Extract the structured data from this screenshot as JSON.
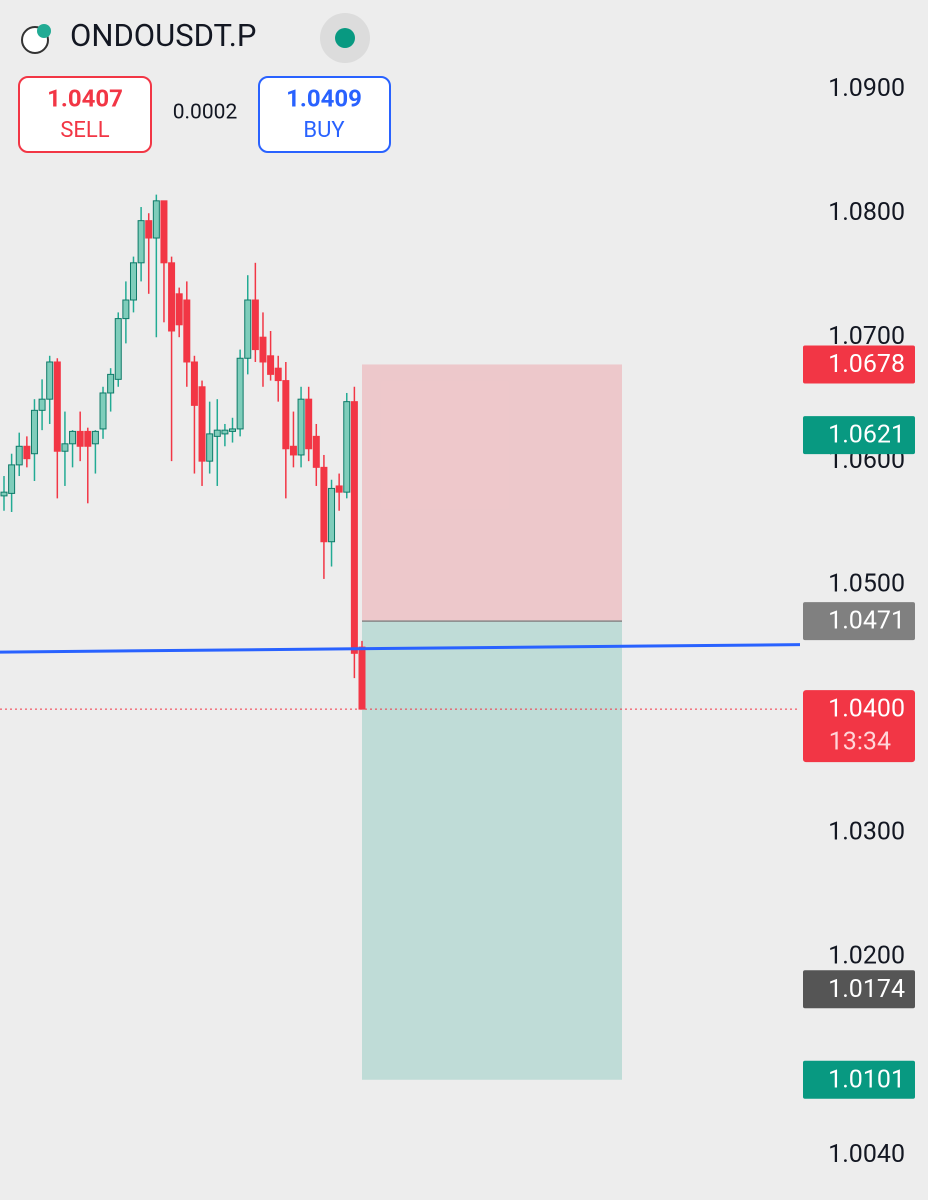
{
  "chart_data": {
    "type": "candlestick",
    "symbol": "ONDOUSDT.P",
    "sell": {
      "price": 1.0407,
      "label": "SELL"
    },
    "spread": 0.0002,
    "buy": {
      "price": 1.0409,
      "label": "BUY"
    },
    "ylim": [
      1.0004,
      1.0972
    ],
    "yticks": [
      {
        "value": 1.09,
        "label": "1.0900"
      },
      {
        "value": 1.08,
        "label": "1.0800"
      },
      {
        "value": 1.07,
        "label": "1.0700"
      },
      {
        "value": 1.06,
        "label": "1.0600"
      },
      {
        "value": 1.05,
        "label": "1.0500"
      },
      {
        "value": 1.03,
        "label": "1.0300"
      },
      {
        "value": 1.02,
        "label": "1.0200"
      },
      {
        "value": 1.004,
        "label": "1.0040"
      }
    ],
    "up_color": "#22ab94",
    "down_color": "#f23645",
    "open": [
      1.0572,
      1.0574,
      1.0597,
      1.0612,
      1.0606,
      1.0641,
      1.065,
      1.068,
      1.0608,
      1.0614,
      1.0624,
      1.0624,
      1.0614,
      1.0626,
      1.0655,
      1.0666,
      1.0715,
      1.073,
      1.076,
      1.0794,
      1.078,
      1.081,
      1.076,
      1.0735,
      1.073,
      1.068,
      1.066,
      1.06,
      1.062,
      1.0622,
      1.0624,
      1.0626,
      1.0683,
      1.073,
      1.07,
      1.0685,
      1.0675,
      1.0665,
      1.0612,
      1.0605,
      1.065,
      1.062,
      1.0595,
      1.0535,
      1.058,
      1.0575,
      1.0648,
      1.045
    ],
    "high": [
      1.0588,
      1.0606,
      1.0623,
      1.062,
      1.065,
      1.0666,
      1.0685,
      1.0683,
      1.064,
      1.0625,
      1.064,
      1.0627,
      1.0625,
      1.066,
      1.0675,
      1.072,
      1.0745,
      1.0765,
      1.0805,
      1.08,
      1.0815,
      1.081,
      1.0765,
      1.074,
      1.0745,
      1.0685,
      1.0665,
      1.0648,
      1.065,
      1.063,
      1.0635,
      1.069,
      1.075,
      1.076,
      1.072,
      1.0705,
      1.0685,
      1.068,
      1.064,
      1.066,
      1.066,
      1.063,
      1.0605,
      1.0585,
      1.059,
      1.0655,
      1.066,
      1.0455
    ],
    "low": [
      1.056,
      1.0559,
      1.0588,
      1.0595,
      1.0584,
      1.0625,
      1.063,
      1.057,
      1.058,
      1.0595,
      1.06,
      1.0566,
      1.059,
      1.0618,
      1.064,
      1.066,
      1.0695,
      1.072,
      1.0745,
      1.0735,
      1.07,
      1.0712,
      1.06,
      1.07,
      1.066,
      1.059,
      1.058,
      1.059,
      1.058,
      1.0612,
      1.0615,
      1.062,
      1.067,
      1.068,
      1.066,
      1.0665,
      1.0648,
      1.057,
      1.0595,
      1.0595,
      1.06,
      1.058,
      1.0505,
      1.0515,
      1.056,
      1.057,
      1.0425,
      1.04
    ],
    "close": [
      1.0575,
      1.0597,
      1.0612,
      1.0602,
      1.0641,
      1.065,
      1.068,
      1.0608,
      1.0614,
      1.0624,
      1.0612,
      1.0612,
      1.0624,
      1.0655,
      1.067,
      1.0715,
      1.073,
      1.076,
      1.0794,
      1.078,
      1.081,
      1.076,
      1.0705,
      1.071,
      1.068,
      1.0645,
      1.06,
      1.0622,
      1.0625,
      1.0625,
      1.0626,
      1.0683,
      1.073,
      1.069,
      1.068,
      1.067,
      1.0665,
      1.061,
      1.0605,
      1.065,
      1.061,
      1.0595,
      1.0535,
      1.0578,
      1.0575,
      1.0648,
      1.0445,
      1.04
    ],
    "position": {
      "stop": 1.0678,
      "entry": 1.0471,
      "target": 1.0101
    },
    "trend_line": {
      "values": [
        1.0446,
        1.0452
      ],
      "color": "#2962ff"
    },
    "last_price": {
      "value": 1.04,
      "label": "1.0400"
    },
    "countdown": "13:34",
    "price_labels": [
      {
        "price": 1.0678,
        "color": "#f23645"
      },
      {
        "price": 1.0621,
        "color": "#089981"
      },
      {
        "price": 1.0471,
        "color": "#808080"
      },
      {
        "price": 1.0174,
        "color": "#555555"
      },
      {
        "price": 1.0101,
        "color": "#089981"
      }
    ]
  }
}
